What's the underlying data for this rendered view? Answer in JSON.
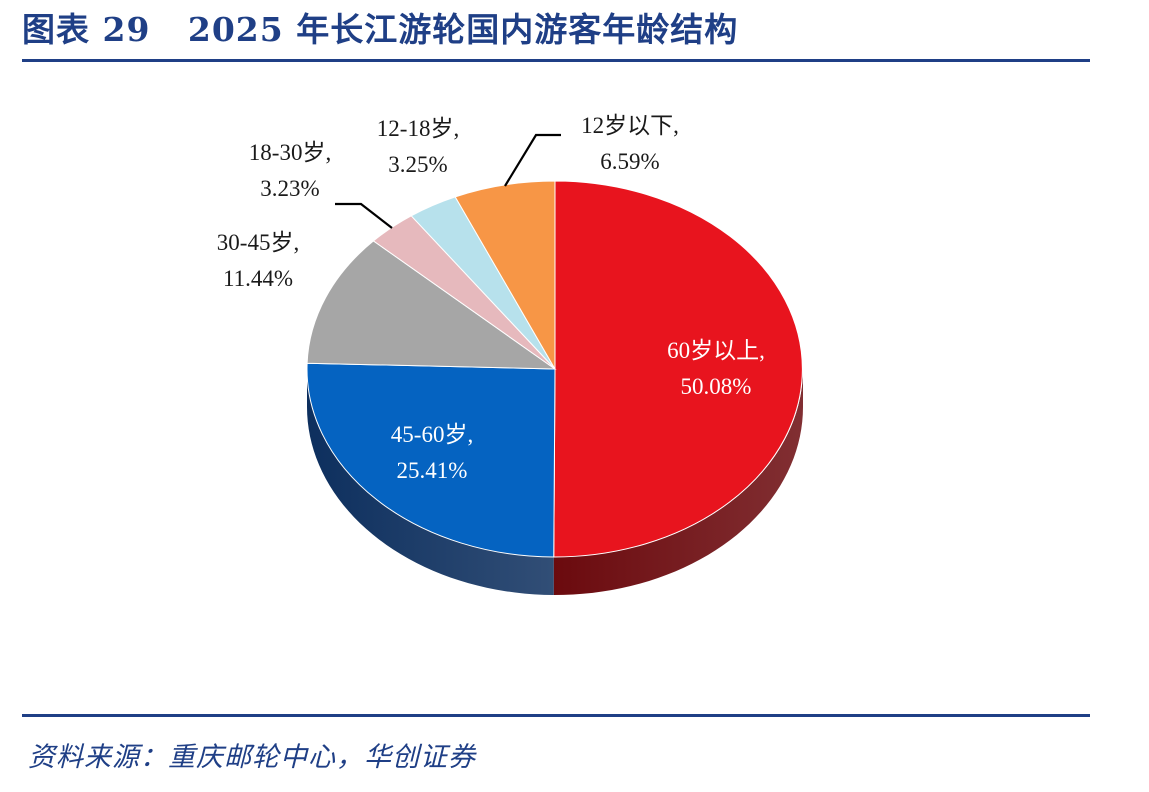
{
  "header": {
    "title": "图表 29   2025 年长江游轮国内游客年龄结构"
  },
  "footer": {
    "source": "资料来源：重庆邮轮中心，华创证券"
  },
  "colors": {
    "brand": "#1f3f86"
  },
  "chart_data": {
    "type": "pie",
    "style": "3d",
    "slices": [
      {
        "label": "60岁以上",
        "value_text": "50.08%",
        "value": 50.08,
        "color": "#e8141e",
        "side_color": "#6b0a0e"
      },
      {
        "label": "45-60岁",
        "value_text": "25.41%",
        "value": 25.41,
        "color": "#0563c1",
        "side_color": "#0d2f5e"
      },
      {
        "label": "30-45岁",
        "value_text": "11.44%",
        "value": 11.44,
        "color": "#a6a6a6",
        "side_color": "#595959"
      },
      {
        "label": "18-30岁",
        "value_text": "3.23%",
        "value": 3.23,
        "color": "#e6b9bd",
        "side_color": "#8c6669"
      },
      {
        "label": "12-18岁",
        "value_text": "3.25%",
        "value": 3.25,
        "color": "#b7e1ec",
        "side_color": "#5f8994"
      },
      {
        "label": "12岁以下",
        "value_text": "6.59%",
        "value": 6.59,
        "color": "#f79646",
        "side_color": "#9a5a20"
      }
    ]
  }
}
